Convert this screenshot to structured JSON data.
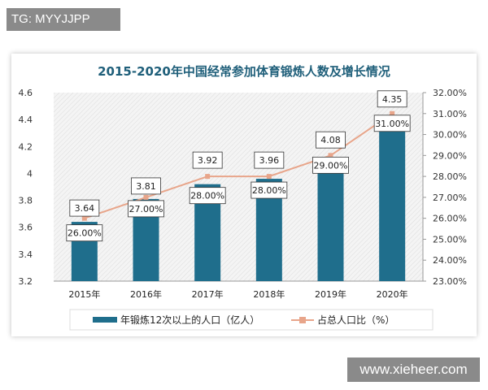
{
  "header_tag": "TG: MYYJJPP",
  "watermark": "www.xieheer.com",
  "chart_data": {
    "type": "bar+line",
    "title": "2015-2020年中国经常参加体育锻炼人数及增长情况",
    "categories": [
      "2015年",
      "2016年",
      "2017年",
      "2018年",
      "2019年",
      "2020年"
    ],
    "series": [
      {
        "name": "年锻炼12次以上的人口（亿人）",
        "type": "bar",
        "axis": "left",
        "values": [
          3.64,
          3.81,
          3.92,
          3.96,
          4.08,
          4.35
        ],
        "labels": [
          "3.64",
          "3.81",
          "3.92",
          "3.96",
          "4.08",
          "4.35"
        ],
        "color": "#1f6e8c"
      },
      {
        "name": "占总人口比（%）",
        "type": "line",
        "axis": "right",
        "values": [
          26,
          27,
          28,
          28,
          29,
          31
        ],
        "labels": [
          "26.00%",
          "27.00%",
          "28.00%",
          "28.00%",
          "29.00%",
          "31.00%"
        ],
        "color": "#e8a58a"
      }
    ],
    "ylim_left": [
      3.2,
      4.6
    ],
    "yticks_left": [
      "3.2",
      "3.4",
      "3.6",
      "3.8",
      "4",
      "4.2",
      "4.4",
      "4.6"
    ],
    "ylim_right": [
      23,
      32
    ],
    "yticks_right": [
      "23.00%",
      "24.00%",
      "25.00%",
      "26.00%",
      "27.00%",
      "28.00%",
      "29.00%",
      "30.00%",
      "31.00%",
      "32.00%"
    ],
    "legend_position": "bottom",
    "grid": false
  }
}
